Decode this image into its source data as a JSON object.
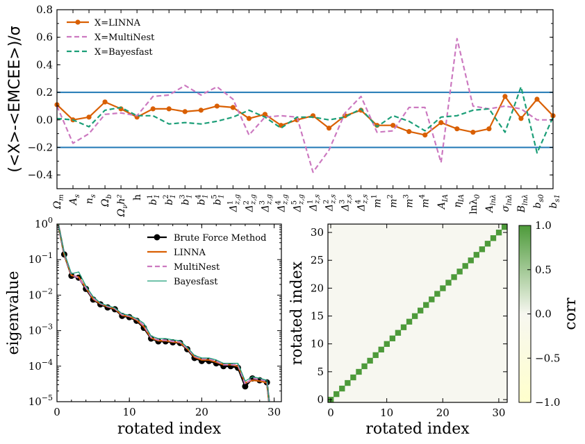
{
  "chart_data": [
    {
      "type": "line",
      "ylabel": "(<X>-<EMCEE>)/σ",
      "ylim": [
        -0.5,
        0.8
      ],
      "yticks": [
        -0.4,
        -0.2,
        0.0,
        0.2,
        0.4,
        0.6,
        0.8
      ],
      "ytick_labels": [
        "−0.4",
        "−0.2",
        "0.0",
        "0.2",
        "0.4",
        "0.6",
        "0.8"
      ],
      "hlines": [
        0.2,
        -0.2
      ],
      "hline_color": "#1f77b4",
      "legend_position": "upper-left",
      "categories": [
        "Ωm",
        "As",
        "ns",
        "Ωb",
        "Ωνh²",
        "h",
        "b1¹",
        "b1²",
        "b1³",
        "b1⁴",
        "b1⁵",
        "Δ¹z,g",
        "Δ²z,g",
        "Δ³z,g",
        "Δ⁴z,g",
        "Δ⁵z,g",
        "Δ¹z,s",
        "Δ²z,s",
        "Δ³z,s",
        "Δ⁴z,s",
        "m¹",
        "m²",
        "m³",
        "m⁴",
        "AIA",
        "ηIA",
        "lnλ0",
        "Alnλ",
        "σlnλ",
        "Blnλ",
        "bs0",
        "bs1"
      ],
      "category_labels": [
        {
          "base": "Ω",
          "sub": "m",
          "sup": "",
          "italic": true
        },
        {
          "base": "A",
          "sub": "s",
          "sup": "",
          "italic": true
        },
        {
          "base": "n",
          "sub": "s",
          "sup": "",
          "italic": true
        },
        {
          "base": "Ω",
          "sub": "b",
          "sup": "",
          "italic": true
        },
        {
          "base": "Ω",
          "sub": "ν",
          "sup": "",
          "tail": "h²",
          "italic": true
        },
        {
          "base": "h",
          "sub": "",
          "sup": "",
          "italic": false
        },
        {
          "base": "b",
          "sub": "1",
          "sup": "1",
          "italic": true
        },
        {
          "base": "b",
          "sub": "1",
          "sup": "2",
          "italic": true
        },
        {
          "base": "b",
          "sub": "1",
          "sup": "3",
          "italic": true
        },
        {
          "base": "b",
          "sub": "1",
          "sup": "4",
          "italic": true
        },
        {
          "base": "b",
          "sub": "1",
          "sup": "5",
          "italic": true
        },
        {
          "base": "Δ",
          "sub": "z,g",
          "sup": "1",
          "italic": true
        },
        {
          "base": "Δ",
          "sub": "z,g",
          "sup": "2",
          "italic": true
        },
        {
          "base": "Δ",
          "sub": "z,g",
          "sup": "3",
          "italic": true
        },
        {
          "base": "Δ",
          "sub": "z,g",
          "sup": "4",
          "italic": true
        },
        {
          "base": "Δ",
          "sub": "z,g",
          "sup": "5",
          "italic": true
        },
        {
          "base": "Δ",
          "sub": "z,s",
          "sup": "1",
          "italic": true
        },
        {
          "base": "Δ",
          "sub": "z,s",
          "sup": "2",
          "italic": true
        },
        {
          "base": "Δ",
          "sub": "z,s",
          "sup": "3",
          "italic": true
        },
        {
          "base": "Δ",
          "sub": "z,s",
          "sup": "4",
          "italic": true
        },
        {
          "base": "m",
          "sub": "",
          "sup": "1",
          "italic": true
        },
        {
          "base": "m",
          "sub": "",
          "sup": "2",
          "italic": true
        },
        {
          "base": "m",
          "sub": "",
          "sup": "3",
          "italic": true
        },
        {
          "base": "m",
          "sub": "",
          "sup": "4",
          "italic": true
        },
        {
          "base": "A",
          "sub": "IA",
          "sup": "",
          "italic": true
        },
        {
          "base": "η",
          "sub": "IA",
          "sup": "",
          "italic": true
        },
        {
          "base": "lnλ",
          "sub": "0",
          "sup": "",
          "italic": false
        },
        {
          "base": "A",
          "sub": "lnλ",
          "sup": "",
          "italic": true
        },
        {
          "base": "σ",
          "sub": "lnλ",
          "sup": "",
          "italic": true
        },
        {
          "base": "B",
          "sub": "lnλ",
          "sup": "",
          "italic": true
        },
        {
          "base": "b",
          "sub": "s0",
          "sup": "",
          "italic": true
        },
        {
          "base": "b",
          "sub": "s1",
          "sup": "",
          "italic": true
        }
      ],
      "series": [
        {
          "name": "X=LINNA",
          "color": "#d95f02",
          "style": "solid-marker",
          "values": [
            0.11,
            0.0,
            0.02,
            0.13,
            0.08,
            0.02,
            0.08,
            0.08,
            0.06,
            0.07,
            0.1,
            0.09,
            0.01,
            0.04,
            -0.04,
            0.0,
            0.03,
            -0.06,
            0.03,
            0.07,
            -0.04,
            -0.04,
            -0.085,
            -0.11,
            -0.02,
            -0.065,
            -0.09,
            -0.065,
            0.17,
            0.01,
            0.15,
            0.03
          ]
        },
        {
          "name": "X=MultiNest",
          "color": "#cc79c0",
          "style": "dashed",
          "values": [
            0.1,
            -0.17,
            -0.1,
            0.04,
            0.05,
            0.03,
            0.17,
            0.18,
            0.25,
            0.18,
            0.24,
            0.15,
            -0.11,
            0.02,
            0.03,
            0.02,
            -0.38,
            -0.22,
            0.05,
            0.17,
            -0.09,
            -0.08,
            0.09,
            0.09,
            -0.31,
            0.59,
            0.1,
            0.08,
            0.1,
            0.08,
            0.0,
            0.0
          ]
        },
        {
          "name": "X=Bayesfast",
          "color": "#1b9e77",
          "style": "dashed",
          "values": [
            0.01,
            0.0,
            -0.05,
            0.07,
            0.09,
            0.03,
            0.03,
            -0.03,
            -0.02,
            -0.03,
            -0.01,
            0.02,
            0.07,
            0.02,
            -0.06,
            0.02,
            0.02,
            0.0,
            0.02,
            0.08,
            -0.05,
            0.03,
            -0.01,
            -0.08,
            0.02,
            0.03,
            0.07,
            0.08,
            -0.09,
            0.24,
            -0.24,
            0.02
          ]
        }
      ]
    },
    {
      "type": "line",
      "xlabel": "rotated index",
      "ylabel": "eigenvalue",
      "yscale": "log",
      "xlim": [
        0,
        31
      ],
      "ylim": [
        1e-05,
        1
      ],
      "xticks": [
        0,
        10,
        20,
        30
      ],
      "yticks_exp": [
        -5,
        -4,
        -3,
        -2,
        -1,
        0
      ],
      "legend_position": "upper-right",
      "x": [
        0,
        1,
        2,
        3,
        4,
        5,
        6,
        7,
        8,
        9,
        10,
        11,
        12,
        13,
        14,
        15,
        16,
        17,
        18,
        19,
        20,
        21,
        22,
        23,
        24,
        25,
        26,
        27,
        28,
        29,
        30
      ],
      "series": [
        {
          "name": "Brute Force Method",
          "color": "#000000",
          "style": "solid-marker",
          "values": [
            1.5,
            0.14,
            0.035,
            0.031,
            0.015,
            0.0075,
            0.0055,
            0.0045,
            0.004,
            0.0026,
            0.0024,
            0.0019,
            0.0012,
            0.0006,
            0.0005,
            0.0005,
            0.00047,
            0.00045,
            0.0003,
            0.00017,
            0.00014,
            0.00014,
            0.00012,
            0.0001,
            0.0001,
            9e-05,
            2.7e-05,
            4.5e-05,
            4e-05,
            3.5e-05,
            5e-07
          ]
        },
        {
          "name": "LINNA",
          "color": "#d95f02",
          "style": "solid",
          "values": [
            1.5,
            0.14,
            0.036,
            0.032,
            0.016,
            0.0078,
            0.0057,
            0.0047,
            0.0041,
            0.0027,
            0.0025,
            0.002,
            0.0013,
            0.00062,
            0.00052,
            0.00052,
            0.00048,
            0.00046,
            0.00031,
            0.00018,
            0.00015,
            0.00015,
            0.00013,
            0.00011,
            0.00011,
            0.0001,
            3.4e-05,
            4e-05,
            3.8e-05,
            3.4e-05,
            5e-07
          ]
        },
        {
          "name": "MultiNest",
          "color": "#cc79c0",
          "style": "dashed",
          "values": [
            1.5,
            0.15,
            0.038,
            0.03,
            0.016,
            0.0082,
            0.0058,
            0.0048,
            0.0042,
            0.0028,
            0.0026,
            0.0021,
            0.0014,
            0.00064,
            0.00055,
            0.00054,
            0.0005,
            0.00048,
            0.00032,
            0.00019,
            0.00016,
            0.00016,
            0.00014,
            0.00011,
            0.00011,
            0.00011,
            3.1e-05,
            4.6e-05,
            4.2e-05,
            3.8e-05,
            5e-07
          ]
        },
        {
          "name": "Bayesfast",
          "color": "#1b9e77",
          "style": "solid-thin",
          "values": [
            1.5,
            0.16,
            0.04,
            0.045,
            0.018,
            0.009,
            0.006,
            0.005,
            0.0044,
            0.003,
            0.0027,
            0.0022,
            0.0016,
            0.0007,
            0.0006,
            0.0006,
            0.00055,
            0.00052,
            0.00034,
            0.0002,
            0.00017,
            0.00017,
            0.00015,
            0.00012,
            0.00012,
            0.00012,
            3.8e-05,
            5e-05,
            4.6e-05,
            4e-05,
            5e-07
          ]
        }
      ]
    },
    {
      "type": "heatmap",
      "xlabel": "rotated index",
      "ylabel": "rotated index",
      "n": 32,
      "xticks": [
        0,
        10,
        20,
        30
      ],
      "yticks": [
        0,
        5,
        10,
        15,
        20,
        25,
        30
      ],
      "diagonal_value": 1.0,
      "off_diagonal_value": 0.0,
      "colorbar": {
        "label": "corr",
        "range": [
          -1.0,
          1.0
        ],
        "ticks": [
          1.0,
          0.5,
          0.0,
          -0.5,
          -1.0
        ],
        "tick_labels": [
          "1.0",
          "0.5",
          "0.0",
          "−0.5",
          "−1.0"
        ],
        "color_low": "#ffffcc",
        "color_mid": "#f7f7f0",
        "color_high": "#4d9a3a"
      }
    }
  ]
}
